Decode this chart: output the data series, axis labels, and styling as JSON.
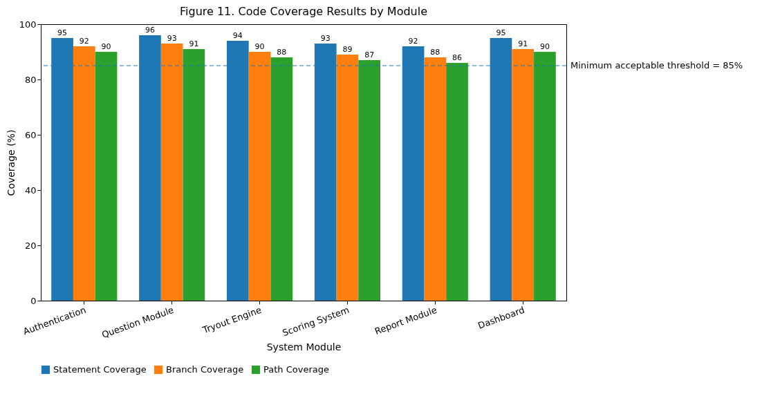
{
  "chart_data": {
    "type": "bar",
    "title": "Figure 11. Code Coverage Results by Module",
    "xlabel": "System Module",
    "ylabel": "Coverage (%)",
    "categories": [
      "Authentication",
      "Question Module",
      "Tryout Engine",
      "Scoring System",
      "Report Module",
      "Dashboard"
    ],
    "series": [
      {
        "name": "Statement Coverage",
        "color": "#1f77b4",
        "values": [
          95,
          96,
          94,
          93,
          92,
          95
        ]
      },
      {
        "name": "Branch Coverage",
        "color": "#ff7f0e",
        "values": [
          92,
          93,
          90,
          89,
          88,
          91
        ]
      },
      {
        "name": "Path Coverage",
        "color": "#2ca02c",
        "values": [
          90,
          91,
          88,
          87,
          86,
          90
        ]
      }
    ],
    "ylim": [
      0,
      100
    ],
    "yticks": [
      0,
      20,
      40,
      60,
      80,
      100
    ],
    "grid": false,
    "legend": "bottom left",
    "data_labels": true,
    "ref_lines": [
      {
        "axis": "y",
        "value": 85,
        "label": "Minimum acceptable threshold = 85%",
        "color": "#1f77b4",
        "line_style": "dashed"
      }
    ]
  }
}
